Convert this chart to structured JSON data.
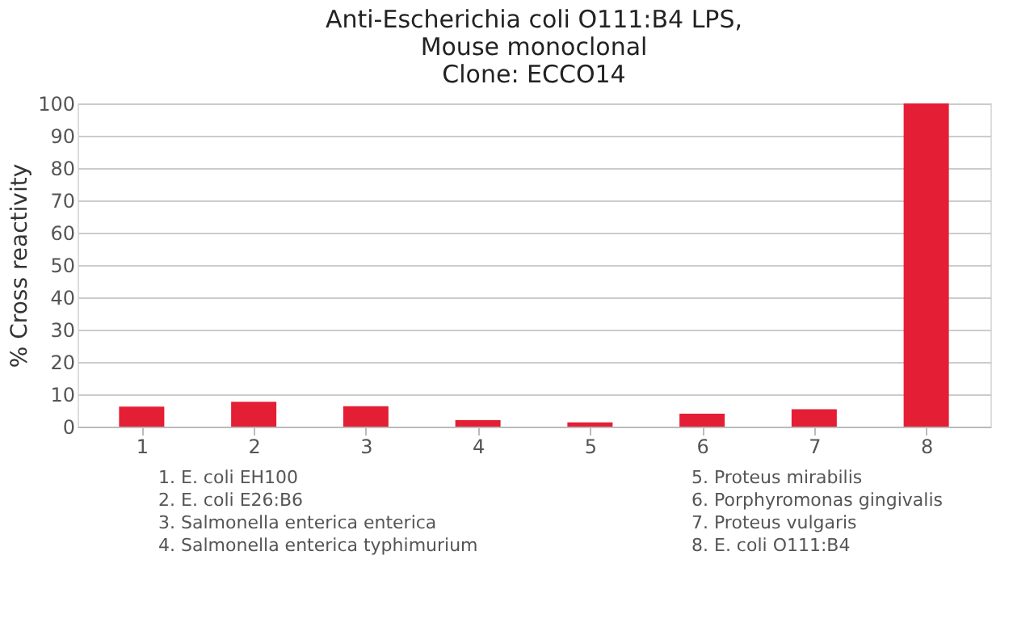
{
  "chart_data": {
    "type": "bar",
    "title": [
      "Anti-Escherichia coli O111:B4 LPS,",
      "Mouse monoclonal",
      "Clone: ECCO14"
    ],
    "ylabel": "% Cross reactivity",
    "categories": [
      "1",
      "2",
      "3",
      "4",
      "5",
      "6",
      "7",
      "8"
    ],
    "values": [
      6.2,
      7.7,
      6.3,
      2,
      1.3,
      4,
      5.4,
      100
    ],
    "color": "#e41e35",
    "ylim": [
      0,
      100
    ],
    "yticks": [
      0,
      10,
      20,
      30,
      40,
      50,
      60,
      70,
      80,
      90,
      100
    ],
    "grid": "y",
    "annotations": [
      "1. E. coli EH100",
      "2. E. coli E26:B6",
      "3. Salmonella enterica enterica",
      "4. Salmonella enterica typhimurium",
      "5. Proteus mirabilis",
      "6. Porphyromonas gingivalis",
      "7. Proteus vulgaris",
      "8. E. coli O111:B4"
    ]
  }
}
